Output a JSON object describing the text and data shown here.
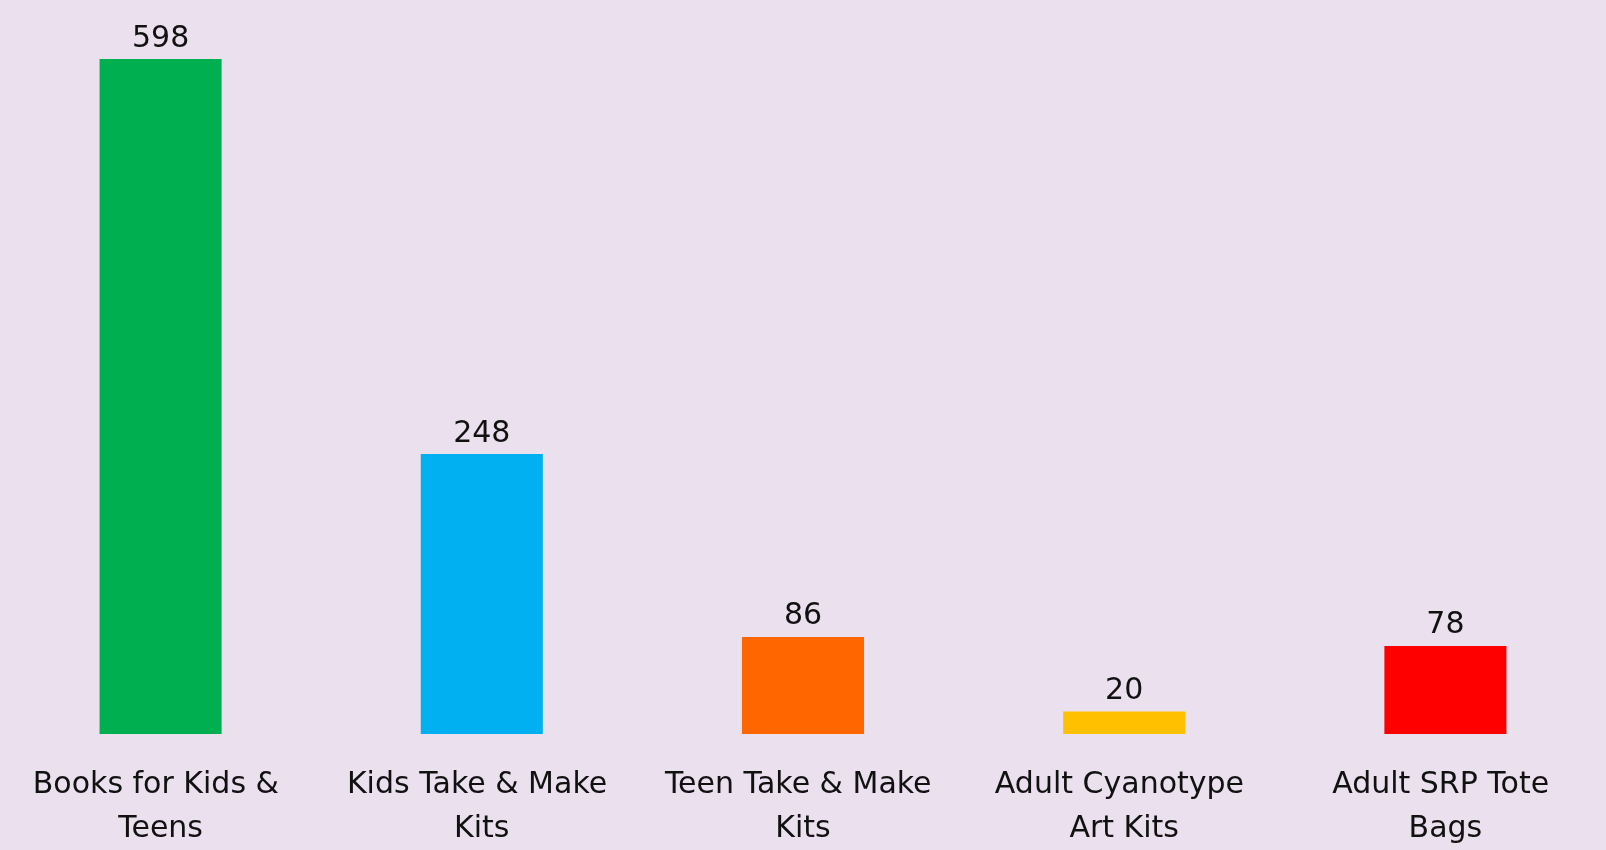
{
  "chart_data": {
    "type": "bar",
    "categories": [
      "Books for Kids & Teens",
      "Kids Take & Make Kits",
      "Teen Take & Make Kits",
      "Adult Cyanotype Art Kits",
      "Adult SRP Tote Bags"
    ],
    "values": [
      598,
      248,
      86,
      20,
      78
    ],
    "colors": [
      "#00b050",
      "#00b0f0",
      "#ff6600",
      "#ffc000",
      "#ff0000"
    ],
    "data_labels": true
  }
}
